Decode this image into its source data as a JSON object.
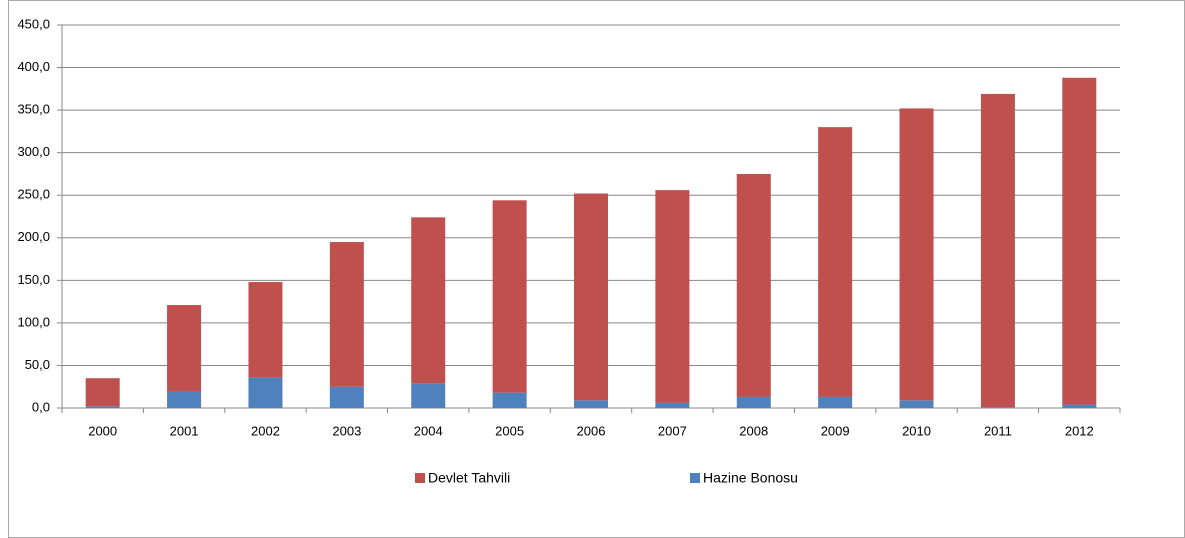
{
  "chart_data": {
    "type": "stacked_bar",
    "categories": [
      "2000",
      "2001",
      "2002",
      "2003",
      "2004",
      "2005",
      "2006",
      "2007",
      "2008",
      "2009",
      "2010",
      "2011",
      "2012"
    ],
    "series": [
      {
        "name": "Devlet Tahvili",
        "color": "#c0504d",
        "values": [
          33,
          101,
          112,
          170,
          195,
          226,
          243,
          250,
          262,
          317,
          343,
          368,
          384
        ]
      },
      {
        "name": "Hazine Bonosu",
        "color": "#4f81bd",
        "values": [
          2,
          20,
          36,
          25,
          29,
          18,
          9,
          6,
          13,
          13,
          9,
          1,
          4
        ]
      }
    ],
    "ylim": [
      0,
      450
    ],
    "yticks": [
      {
        "value": 0,
        "label": "0,0"
      },
      {
        "value": 50,
        "label": "50,0"
      },
      {
        "value": 100,
        "label": "100,0"
      },
      {
        "value": 150,
        "label": "150,0"
      },
      {
        "value": 200,
        "label": "200,0"
      },
      {
        "value": 250,
        "label": "250,0"
      },
      {
        "value": 300,
        "label": "300,0"
      },
      {
        "value": 350,
        "label": "350,0"
      },
      {
        "value": 400,
        "label": "400,0"
      },
      {
        "value": 450,
        "label": "450,0"
      }
    ],
    "grid": true,
    "legend": "bottom"
  }
}
